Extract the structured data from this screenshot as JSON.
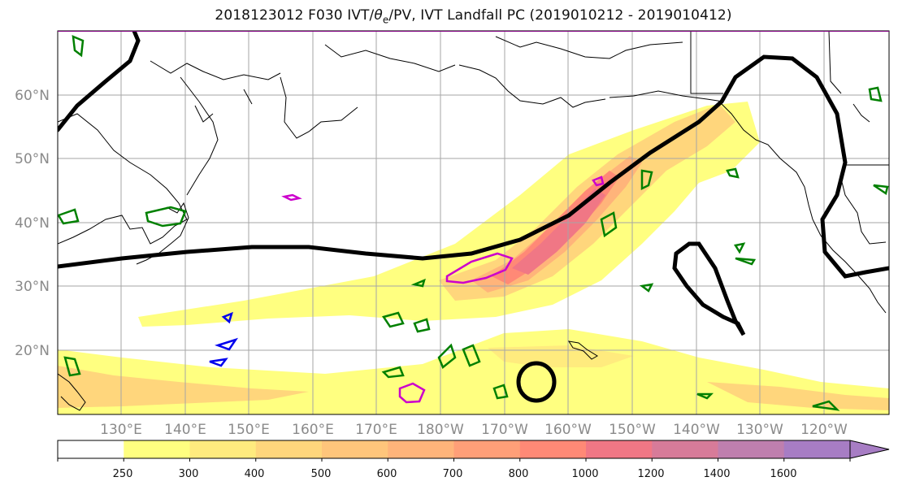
{
  "title": "2018123012 F030 IVT/θe/PV, IVT Landfall PC (2019010212 - 2019010412)",
  "title_parts": {
    "before": "2018123012 F030 IVT/",
    "theta": "θ",
    "theta_sub": "e",
    "after": "/PV, IVT Landfall PC (2019010212 - 2019010412)"
  },
  "latitude_labels": [
    "60°N",
    "50°N",
    "40°N",
    "30°N",
    "20°N"
  ],
  "longitude_labels": [
    "130°E",
    "140°E",
    "150°E",
    "160°E",
    "170°E",
    "180°W",
    "170°W",
    "160°W",
    "150°W",
    "140°W",
    "130°W",
    "120°W"
  ],
  "colorbar": {
    "tick_labels": [
      "250",
      "300",
      "400",
      "500",
      "600",
      "700",
      "800",
      "1000",
      "1200",
      "1400",
      "1600"
    ],
    "colors": [
      "#ffffff",
      "#ffff80",
      "#ffeb7e",
      "#ffd67c",
      "#ffc57b",
      "#ffb47a",
      "#ff9f78",
      "#ff8976",
      "#f07785",
      "#d77b99",
      "#bf7fae",
      "#a77dc4"
    ]
  },
  "field_colors": {
    "coast": "#000000",
    "grid": "#a6a6a6",
    "ivt_pc_contour": "#000000",
    "theta_e_contour": "#008000",
    "pv_contour_magenta": "#cc00cc",
    "pv_contour_blue": "#0000ee"
  }
}
